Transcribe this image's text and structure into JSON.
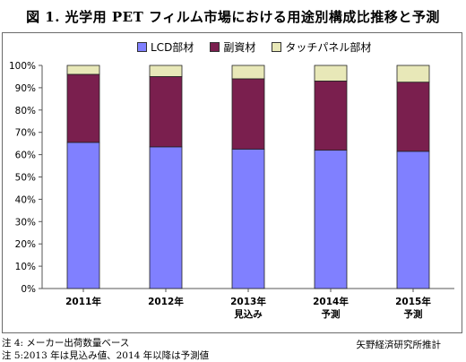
{
  "title": "図 1.  光学用 PET フィルム市場における用途別構成比推移と予測",
  "chart_data": {
    "type": "bar",
    "stacked": true,
    "categories": [
      "2011年",
      "2012年",
      "2013年",
      "2014年",
      "2015年"
    ],
    "category_sublabels": [
      "",
      "",
      "見込み",
      "予測",
      "予測"
    ],
    "series": [
      {
        "name": "LCD部材",
        "values": [
          65.5,
          63.5,
          62.5,
          62.0,
          61.5
        ],
        "color": "#8080ff"
      },
      {
        "name": "副資材",
        "values": [
          30.5,
          31.5,
          31.5,
          31.0,
          31.0
        ],
        "color": "#7a1f4e"
      },
      {
        "name": "タッチパネル部材",
        "values": [
          4.0,
          5.0,
          6.0,
          7.0,
          7.5
        ],
        "color": "#e8e8b8"
      }
    ],
    "y_ticks": [
      "0%",
      "10%",
      "20%",
      "30%",
      "40%",
      "50%",
      "60%",
      "70%",
      "80%",
      "90%",
      "100%"
    ],
    "ylim": [
      0,
      100
    ],
    "grid": false,
    "legend_position": "top"
  },
  "notes": [
    "注 4:  メーカー出荷数量ベース",
    "注 5:2013 年は見込み値、2014 年以降は予測値"
  ],
  "source": "矢野経済研究所推計"
}
